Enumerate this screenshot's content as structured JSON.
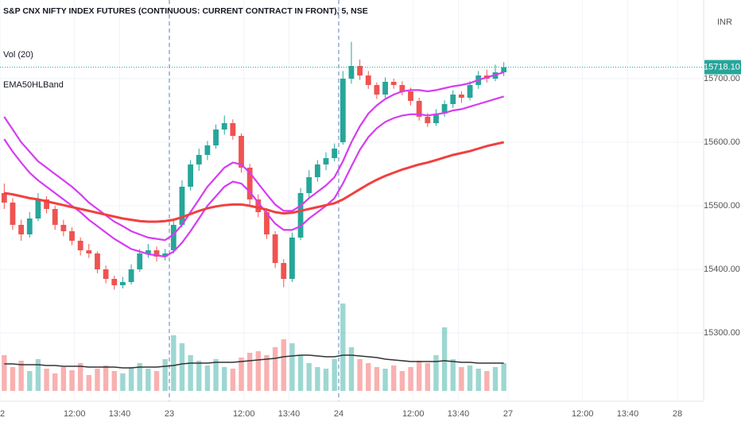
{
  "chart_data": {
    "type": "candlestick",
    "title": "S&P CNX NIFTY INDEX FUTURES (CONTINUOUS: CURRENT CONTRACT IN FRONT), 5, NSE",
    "indicator_labels": [
      "Vol (20)",
      "EMA50HLBand"
    ],
    "currency": "INR",
    "up_color": "#26a69a",
    "down_color": "#ef5350",
    "ylim": [
      15192.5,
      15823.75
    ],
    "yticks": [
      {
        "value": 15300,
        "label": "15300.00"
      },
      {
        "value": 15400,
        "label": "15400.00"
      },
      {
        "value": 15500,
        "label": "15500.00"
      },
      {
        "value": 15600,
        "label": "15600.00"
      },
      {
        "value": 15700,
        "label": "15700.00"
      }
    ],
    "xlim": [
      0,
      83.1
    ],
    "xticks": [
      {
        "value": 0,
        "label": "2"
      },
      {
        "value": 8.8,
        "label": "12:00"
      },
      {
        "value": 14.13,
        "label": "13:40"
      },
      {
        "value": 20,
        "label": "23"
      },
      {
        "value": 28.8,
        "label": "12:00"
      },
      {
        "value": 34.13,
        "label": "13:40"
      },
      {
        "value": 40,
        "label": "24"
      },
      {
        "value": 48.8,
        "label": "12:00"
      },
      {
        "value": 54.13,
        "label": "13:40"
      },
      {
        "value": 60,
        "label": "27"
      },
      {
        "value": 68.8,
        "label": "12:00"
      },
      {
        "value": 74.13,
        "label": "13:40"
      },
      {
        "value": 80,
        "label": "28"
      }
    ],
    "grid": true,
    "last_price": {
      "value": 15718.1,
      "label": "15718.10"
    },
    "candles": [
      [
        15520,
        15535,
        15495,
        15505
      ],
      [
        15505,
        15512,
        15462,
        15470
      ],
      [
        15470,
        15478,
        15445,
        15455
      ],
      [
        15455,
        15490,
        15450,
        15480
      ],
      [
        15480,
        15520,
        15476,
        15510
      ],
      [
        15510,
        15515,
        15488,
        15495
      ],
      [
        15495,
        15500,
        15462,
        15470
      ],
      [
        15470,
        15478,
        15452,
        15460
      ],
      [
        15460,
        15466,
        15438,
        15445
      ],
      [
        15445,
        15450,
        15422,
        15430
      ],
      [
        15430,
        15440,
        15418,
        15425
      ],
      [
        15425,
        15428,
        15394,
        15400
      ],
      [
        15400,
        15406,
        15378,
        15385
      ],
      [
        15385,
        15390,
        15368,
        15375
      ],
      [
        15375,
        15388,
        15370,
        15380
      ],
      [
        15380,
        15408,
        15376,
        15400
      ],
      [
        15400,
        15432,
        15396,
        15425
      ],
      [
        15425,
        15440,
        15418,
        15430
      ],
      [
        15430,
        15436,
        15412,
        15420
      ],
      [
        15420,
        15432,
        15414,
        15425
      ],
      [
        15430,
        15478,
        15425,
        15470
      ],
      [
        15470,
        15540,
        15466,
        15530
      ],
      [
        15530,
        15572,
        15524,
        15565
      ],
      [
        15565,
        15590,
        15555,
        15580
      ],
      [
        15580,
        15602,
        15572,
        15595
      ],
      [
        15595,
        15628,
        15590,
        15620
      ],
      [
        15620,
        15642,
        15612,
        15630
      ],
      [
        15630,
        15636,
        15604,
        15610
      ],
      [
        15610,
        15614,
        15552,
        15560
      ],
      [
        15560,
        15566,
        15502,
        15510
      ],
      [
        15510,
        15518,
        15482,
        15490
      ],
      [
        15490,
        15496,
        15448,
        15455
      ],
      [
        15455,
        15460,
        15402,
        15410
      ],
      [
        15410,
        15416,
        15372,
        15385
      ],
      [
        15385,
        15458,
        15380,
        15450
      ],
      [
        15450,
        15528,
        15446,
        15520
      ],
      [
        15520,
        15556,
        15512,
        15545
      ],
      [
        15545,
        15572,
        15538,
        15565
      ],
      [
        15565,
        15584,
        15556,
        15575
      ],
      [
        15575,
        15598,
        15570,
        15590
      ],
      [
        15600,
        15712,
        15596,
        15700
      ],
      [
        15700,
        15758,
        15692,
        15720
      ],
      [
        15720,
        15730,
        15698,
        15705
      ],
      [
        15705,
        15712,
        15684,
        15690
      ],
      [
        15690,
        15694,
        15668,
        15675
      ],
      [
        15675,
        15702,
        15670,
        15695
      ],
      [
        15695,
        15700,
        15684,
        15690
      ],
      [
        15690,
        15696,
        15674,
        15680
      ],
      [
        15680,
        15686,
        15658,
        15665
      ],
      [
        15665,
        15670,
        15634,
        15640
      ],
      [
        15640,
        15646,
        15624,
        15630
      ],
      [
        15630,
        15652,
        15626,
        15645
      ],
      [
        15645,
        15666,
        15640,
        15660
      ],
      [
        15660,
        15682,
        15654,
        15675
      ],
      [
        15675,
        15680,
        15662,
        15670
      ],
      [
        15670,
        15696,
        15666,
        15690
      ],
      [
        15690,
        15712,
        15684,
        15705
      ],
      [
        15705,
        15714,
        15694,
        15700
      ],
      [
        15700,
        15722,
        15696,
        15710
      ],
      [
        15710,
        15726,
        15704,
        15718
      ]
    ],
    "volume_lim": [
      0,
      250
    ],
    "volume": [
      45,
      30,
      38,
      25,
      40,
      28,
      22,
      30,
      26,
      35,
      20,
      28,
      32,
      25,
      22,
      30,
      35,
      28,
      25,
      40,
      70,
      60,
      45,
      38,
      32,
      40,
      30,
      28,
      42,
      48,
      50,
      45,
      55,
      65,
      60,
      45,
      35,
      30,
      28,
      40,
      110,
      55,
      40,
      35,
      30,
      28,
      32,
      25,
      30,
      38,
      35,
      45,
      80,
      40,
      30,
      32,
      28,
      25,
      30,
      35
    ],
    "volume_ma": {
      "color": "#333333",
      "values": [
        34,
        34,
        33,
        33,
        33,
        32,
        32,
        31,
        31,
        31,
        30,
        30,
        30,
        30,
        29,
        29,
        30,
        30,
        30,
        31,
        32,
        34,
        35,
        35,
        35,
        36,
        36,
        36,
        37,
        38,
        39,
        40,
        41,
        43,
        44,
        45,
        45,
        44,
        43,
        43,
        45,
        45,
        44,
        43,
        42,
        40,
        39,
        38,
        37,
        37,
        37,
        37,
        38,
        37,
        36,
        36,
        35,
        35,
        35,
        35
      ]
    },
    "bands": [
      {
        "color": "#d63cf2",
        "values": [
          15640,
          15620,
          15600,
          15585,
          15570,
          15560,
          15550,
          15540,
          15530,
          15518,
          15505,
          15495,
          15485,
          15475,
          15468,
          15460,
          15455,
          15450,
          15448,
          15446,
          15455,
          15470,
          15490,
          15510,
          15530,
          15545,
          15560,
          15568,
          15565,
          15552,
          15535,
          15518,
          15502,
          15492,
          15492,
          15500,
          15512,
          15522,
          15532,
          15545,
          15570,
          15600,
          15625,
          15645,
          15658,
          15668,
          15675,
          15680,
          15682,
          15682,
          15680,
          15682,
          15685,
          15688,
          15690,
          15693,
          15698,
          15702,
          15706,
          15710
        ]
      },
      {
        "color": "#d63cf2",
        "values": [
          15605,
          15585,
          15568,
          15552,
          15540,
          15530,
          15520,
          15510,
          15500,
          15490,
          15478,
          15468,
          15458,
          15448,
          15440,
          15432,
          15428,
          15424,
          15422,
          15420,
          15428,
          15442,
          15460,
          15480,
          15500,
          15515,
          15530,
          15538,
          15535,
          15522,
          15505,
          15488,
          15472,
          15462,
          15462,
          15468,
          15480,
          15490,
          15500,
          15512,
          15535,
          15562,
          15588,
          15608,
          15622,
          15632,
          15638,
          15642,
          15644,
          15644,
          15642,
          15644,
          15646,
          15650,
          15652,
          15656,
          15660,
          15664,
          15668,
          15672
        ]
      },
      {
        "color": "#f04040",
        "values": [
          15520,
          15518,
          15515,
          15512,
          15510,
          15507,
          15504,
          15501,
          15498,
          15495,
          15492,
          15489,
          15486,
          15483,
          15480,
          15478,
          15476,
          15475,
          15475,
          15476,
          15478,
          15482,
          15487,
          15492,
          15496,
          15499,
          15501,
          15502,
          15502,
          15500,
          15497,
          15494,
          15490,
          15488,
          15489,
          15492,
          15495,
          15498,
          15501,
          15504,
          15510,
          15518,
          15526,
          15534,
          15541,
          15547,
          15552,
          15557,
          15561,
          15565,
          15568,
          15572,
          15576,
          15580,
          15583,
          15586,
          15590,
          15594,
          15597,
          15600
        ]
      }
    ]
  }
}
